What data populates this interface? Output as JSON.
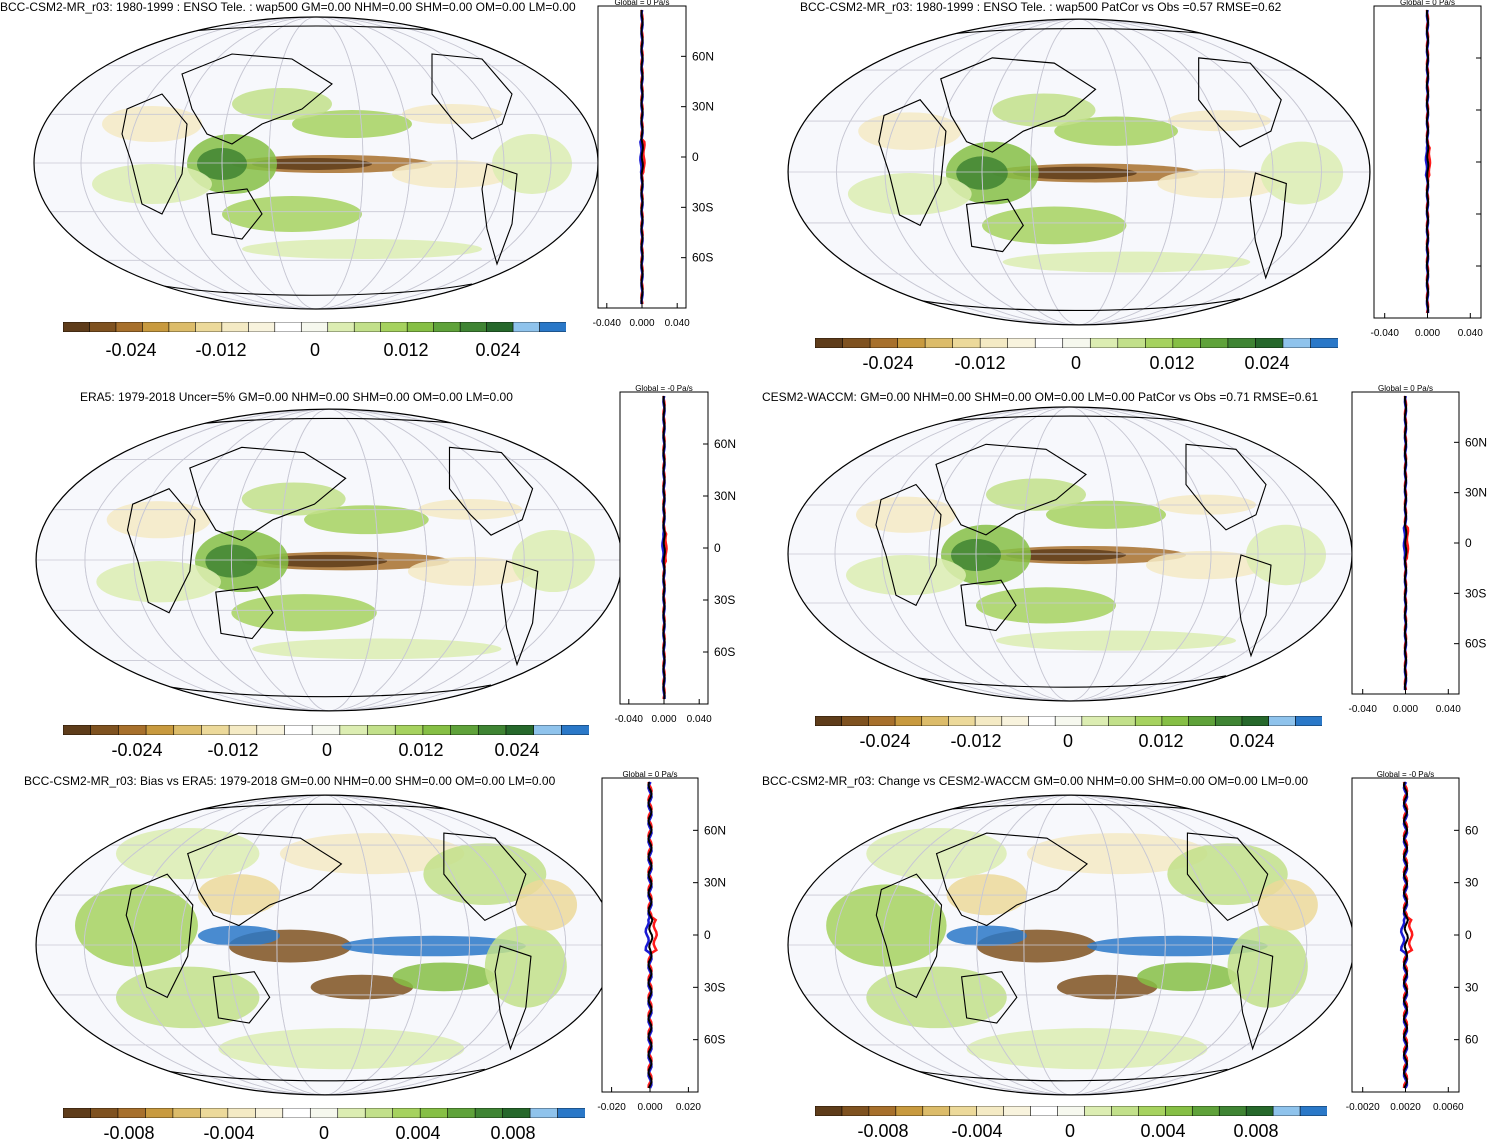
{
  "colors": {
    "palette": [
      "#5e3c1a",
      "#7f5220",
      "#a7702c",
      "#c89a3f",
      "#dcbc6a",
      "#ecd99a",
      "#f4eac4",
      "#f8f3dd",
      "#ffffff",
      "#f6f8ee",
      "#dcedb2",
      "#c2e08a",
      "#a6d25f",
      "#86bf45",
      "#5fa23a",
      "#3f8433",
      "#26682b",
      "#8fc3ec",
      "#2a78c8"
    ],
    "profile_black": "#000000",
    "profile_red": "#ff1a1a",
    "profile_blue": "#1a1ad4"
  },
  "panels": [
    {
      "id": "top-left",
      "title": "BCC-CSM2-MR_r03: 1980-1999 : ENSO Tele. : wap500 GM=0.00 NHM=0.00 SHM=0.00 OM=0.00 LM=0.00",
      "profile_title": "Global = 0 Pa/s",
      "lat_ticks": [
        "60N",
        "30N",
        "0",
        "30S",
        "60S"
      ],
      "x_ticks": [
        "-0.040",
        "0.000",
        "0.040"
      ],
      "colorbar_labels": [
        "-0.024",
        "-0.012",
        "0",
        "0.012",
        "0.024"
      ]
    },
    {
      "id": "top-right",
      "title": "BCC-CSM2-MR_r03: 1980-1999 : ENSO Tele. : wap500 PatCor vs Obs =0.57 RMSE=0.62",
      "profile_title": "Global = 0 Pa/s",
      "lat_ticks": [],
      "x_ticks": [
        "-0.040",
        "0.000",
        "0.040"
      ],
      "colorbar_labels": [
        "-0.024",
        "-0.012",
        "0",
        "0.012",
        "0.024"
      ]
    },
    {
      "id": "middle-left",
      "title": "ERA5: 1979-2018 Uncer=5% GM=0.00 NHM=0.00 SHM=0.00 OM=0.00 LM=0.00",
      "profile_title": "Global = -0 Pa/s",
      "lat_ticks": [
        "60N",
        "30N",
        "0",
        "30S",
        "60S"
      ],
      "x_ticks": [
        "-0.040",
        "0.000",
        "0.040"
      ],
      "colorbar_labels": [
        "-0.024",
        "-0.012",
        "0",
        "0.012",
        "0.024"
      ]
    },
    {
      "id": "middle-right",
      "title": "CESM2-WACCM: GM=0.00 NHM=0.00 SHM=0.00 OM=0.00 LM=0.00 PatCor vs Obs =0.71 RMSE=0.61",
      "profile_title": "Global = 0 Pa/s",
      "lat_ticks": [
        "60N",
        "30N",
        "0",
        "30S",
        "60S"
      ],
      "x_ticks": [
        "-0.040",
        "0.000",
        "0.040"
      ],
      "colorbar_labels": [
        "-0.024",
        "-0.012",
        "0",
        "0.012",
        "0.024"
      ]
    },
    {
      "id": "bottom-left",
      "title": "BCC-CSM2-MR_r03: Bias vs ERA5: 1979-2018 GM=0.00 NHM=0.00 SHM=0.00 OM=0.00 LM=0.00",
      "profile_title": "Global = 0 Pa/s",
      "lat_ticks": [
        "60N",
        "30N",
        "0",
        "30S",
        "60S"
      ],
      "x_ticks": [
        "-0.020",
        "0.000",
        "0.020"
      ],
      "colorbar_labels": [
        "-0.008",
        "-0.004",
        "0",
        "0.004",
        "0.008"
      ]
    },
    {
      "id": "bottom-right",
      "title": "BCC-CSM2-MR_r03: Change vs CESM2-WACCM GM=0.00 NHM=0.00 SHM=0.00 OM=0.00 LM=0.00",
      "profile_title": "Global = -0 Pa/s",
      "lat_ticks": [
        "60",
        "30",
        "0",
        "30",
        "60"
      ],
      "x_ticks": [
        "-0.0020",
        "0.0020",
        "0.0060"
      ],
      "colorbar_labels": [
        "-0.008",
        "-0.004",
        "0",
        "0.004",
        "0.008"
      ]
    }
  ]
}
